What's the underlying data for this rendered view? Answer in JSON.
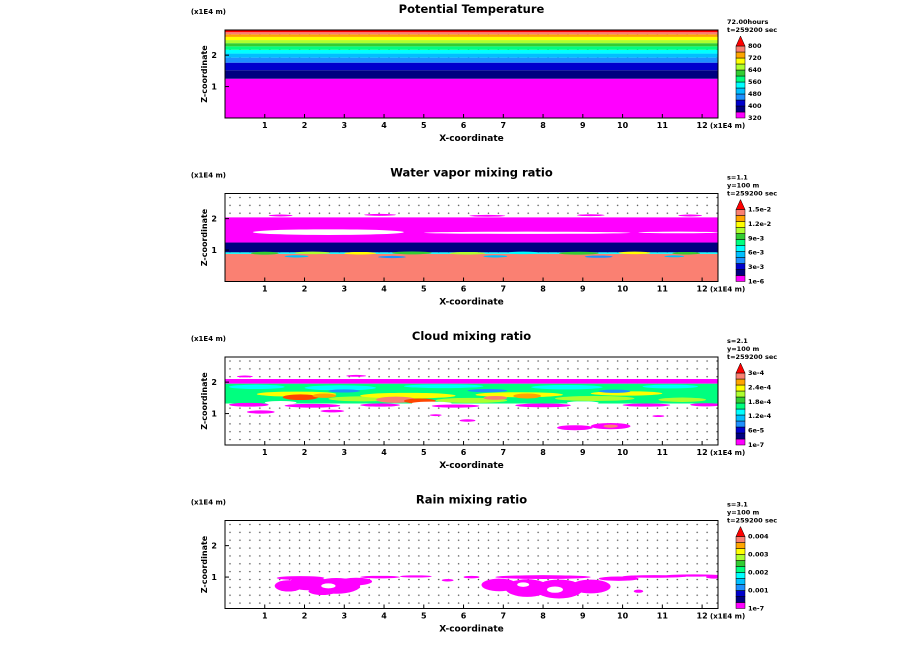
{
  "figure": {
    "background": "#FFFFFF",
    "text_color": "#000000"
  },
  "chart_data": [
    {
      "type": "heatmap",
      "title": "Potential Temperature",
      "xlabel": "X-coordinate",
      "ylabel": "Z-coordinate",
      "x_unit": "(x1E4 m)",
      "z_unit": "(x1E4 m)",
      "xlim": [
        0,
        12.4
      ],
      "zlim": [
        0,
        2.8
      ],
      "xticks": [
        1,
        2,
        3,
        4,
        5,
        6,
        7,
        8,
        9,
        10,
        11,
        12
      ],
      "zticks": [
        1,
        2
      ],
      "annotations": [
        "72.00hours",
        "t=259200 sec"
      ],
      "colorbar": {
        "labels": [
          "320",
          "400",
          "480",
          "560",
          "640",
          "720",
          "800"
        ],
        "colors": [
          "#FF00FF",
          "#000080",
          "#0000CD",
          "#1E90FF",
          "#00BFFF",
          "#00FFFF",
          "#00FF7F",
          "#32CD32",
          "#ADFF2F",
          "#FFFF00",
          "#FFA500",
          "#FA8072"
        ],
        "pennant": "#FF0000"
      },
      "layers": [
        [
          0.0,
          1.25,
          "#FF00FF"
        ],
        [
          1.25,
          1.52,
          "#000080"
        ],
        [
          1.52,
          1.76,
          "#0000CD"
        ],
        [
          1.76,
          1.92,
          "#1E90FF"
        ],
        [
          1.92,
          2.05,
          "#00BFFF"
        ],
        [
          2.05,
          2.17,
          "#00FFFF"
        ],
        [
          2.17,
          2.28,
          "#00FF7F"
        ],
        [
          2.28,
          2.38,
          "#32CD32"
        ],
        [
          2.38,
          2.48,
          "#ADFF2F"
        ],
        [
          2.48,
          2.58,
          "#FFFF00"
        ],
        [
          2.58,
          2.66,
          "#FFA500"
        ],
        [
          2.66,
          2.73,
          "#FA8072"
        ],
        [
          2.73,
          2.8,
          "#FF0000"
        ]
      ],
      "blobs": []
    },
    {
      "type": "heatmap",
      "title": "Water vapor mixing ratio",
      "xlabel": "X-coordinate",
      "ylabel": "Z-coordinate",
      "x_unit": "(x1E4 m)",
      "z_unit": "(x1E4 m)",
      "xlim": [
        0,
        12.4
      ],
      "zlim": [
        0,
        2.8
      ],
      "xticks": [
        1,
        2,
        3,
        4,
        5,
        6,
        7,
        8,
        9,
        10,
        11,
        12
      ],
      "zticks": [
        1,
        2
      ],
      "annotations": [
        "s=1.1",
        "y=100 m",
        "t=259200 sec"
      ],
      "colorbar": {
        "labels": [
          "1e-6",
          "3e-3",
          "6e-3",
          "9e-3",
          "1.2e-2",
          "1.5e-2"
        ],
        "colors": [
          "#FF00FF",
          "#000080",
          "#0000CD",
          "#1E90FF",
          "#00BFFF",
          "#00FFFF",
          "#00FF7F",
          "#32CD32",
          "#ADFF2F",
          "#FFFF00",
          "#FFA500",
          "#FA8072"
        ],
        "pennant": "#FF0000"
      },
      "layers": [
        [
          0.0,
          0.88,
          "#FA8072"
        ],
        [
          0.88,
          0.93,
          "#00FFFF"
        ],
        [
          0.93,
          1.24,
          "#000080"
        ],
        [
          1.24,
          2.04,
          "#FF00FF"
        ]
      ],
      "blobs": [
        [
          1.0,
          0.9,
          0.35,
          0.045,
          "#32CD32"
        ],
        [
          2.2,
          0.91,
          0.45,
          0.04,
          "#ADFF2F"
        ],
        [
          3.4,
          0.9,
          0.4,
          0.04,
          "#FFFF00"
        ],
        [
          4.7,
          0.91,
          0.5,
          0.045,
          "#32CD32"
        ],
        [
          6.1,
          0.9,
          0.45,
          0.04,
          "#ADFF2F"
        ],
        [
          7.5,
          0.91,
          0.4,
          0.04,
          "#00FFFF"
        ],
        [
          8.9,
          0.9,
          0.5,
          0.045,
          "#32CD32"
        ],
        [
          10.3,
          0.91,
          0.4,
          0.04,
          "#FFFF00"
        ],
        [
          11.6,
          0.9,
          0.35,
          0.04,
          "#32CD32"
        ],
        [
          1.8,
          0.8,
          0.3,
          0.035,
          "#00BFFF"
        ],
        [
          4.2,
          0.78,
          0.35,
          0.035,
          "#1E90FF"
        ],
        [
          6.8,
          0.8,
          0.3,
          0.035,
          "#00BFFF"
        ],
        [
          9.4,
          0.79,
          0.35,
          0.035,
          "#1E90FF"
        ],
        [
          11.3,
          0.8,
          0.25,
          0.03,
          "#00BFFF"
        ],
        [
          2.6,
          1.57,
          1.9,
          0.09,
          "#FFFFFF"
        ],
        [
          7.6,
          1.55,
          2.6,
          0.035,
          "#FFFFFF"
        ],
        [
          11.4,
          1.56,
          1.0,
          0.025,
          "#FFFFFF"
        ],
        [
          1.4,
          2.1,
          0.3,
          0.03,
          "#FF00FF"
        ],
        [
          3.9,
          2.12,
          0.4,
          0.03,
          "#FF00FF"
        ],
        [
          6.6,
          2.09,
          0.45,
          0.03,
          "#FF00FF"
        ],
        [
          9.2,
          2.11,
          0.35,
          0.03,
          "#FF00FF"
        ],
        [
          11.7,
          2.1,
          0.3,
          0.03,
          "#FF00FF"
        ]
      ]
    },
    {
      "type": "heatmap",
      "title": "Cloud mixing ratio",
      "xlabel": "X-coordinate",
      "ylabel": "Z-coordinate",
      "x_unit": "(x1E4 m)",
      "z_unit": "(x1E4 m)",
      "xlim": [
        0,
        12.4
      ],
      "zlim": [
        0,
        2.8
      ],
      "xticks": [
        1,
        2,
        3,
        4,
        5,
        6,
        7,
        8,
        9,
        10,
        11,
        12
      ],
      "zticks": [
        1,
        2
      ],
      "annotations": [
        "s=2.1",
        "y=100 m",
        "t=259200 sec"
      ],
      "colorbar": {
        "labels": [
          "1e-7",
          "6e-5",
          "1.2e-4",
          "1.8e-4",
          "2.4e-4",
          "3e-4"
        ],
        "colors": [
          "#FF00FF",
          "#000080",
          "#0000CD",
          "#1E90FF",
          "#00BFFF",
          "#00FFFF",
          "#00FF7F",
          "#32CD32",
          "#ADFF2F",
          "#FFFF00",
          "#FFA500",
          "#FA8072"
        ],
        "pennant": "#FF0000"
      },
      "layers": [
        [
          1.95,
          2.1,
          "#FF00FF"
        ],
        [
          1.32,
          1.95,
          "#00FF7F"
        ]
      ],
      "blobs": [
        [
          0.8,
          1.85,
          0.7,
          0.07,
          "#00FFFF"
        ],
        [
          2.9,
          1.82,
          0.9,
          0.08,
          "#00FFFF"
        ],
        [
          5.5,
          1.87,
          1.0,
          0.06,
          "#00FFFF"
        ],
        [
          8.6,
          1.84,
          0.9,
          0.07,
          "#00FFFF"
        ],
        [
          11.2,
          1.86,
          0.7,
          0.06,
          "#00FFFF"
        ],
        [
          3.5,
          1.47,
          0.9,
          0.08,
          "#ADFF2F"
        ],
        [
          6.2,
          1.42,
          0.9,
          0.08,
          "#ADFF2F"
        ],
        [
          9.3,
          1.48,
          1.0,
          0.08,
          "#ADFF2F"
        ],
        [
          11.5,
          1.44,
          0.6,
          0.07,
          "#ADFF2F"
        ],
        [
          1.8,
          1.62,
          1.0,
          0.08,
          "#FFFF00"
        ],
        [
          4.6,
          1.57,
          1.2,
          0.09,
          "#FFFF00"
        ],
        [
          7.4,
          1.6,
          1.1,
          0.08,
          "#FFFF00"
        ],
        [
          10.1,
          1.64,
          0.9,
          0.07,
          "#FFFF00"
        ],
        [
          1.9,
          1.52,
          0.45,
          0.09,
          "#FF4500"
        ],
        [
          2.5,
          1.57,
          0.3,
          0.07,
          "#FFA500"
        ],
        [
          4.3,
          1.44,
          0.5,
          0.1,
          "#FA8072"
        ],
        [
          4.9,
          1.4,
          0.4,
          0.08,
          "#FF4500"
        ],
        [
          7.6,
          1.56,
          0.35,
          0.08,
          "#FFA500"
        ],
        [
          6.8,
          1.5,
          0.3,
          0.06,
          "#FA8072"
        ],
        [
          3.0,
          1.72,
          0.4,
          0.05,
          "#1E90FF"
        ],
        [
          6.6,
          1.73,
          0.5,
          0.05,
          "#1E90FF"
        ],
        [
          9.8,
          1.71,
          0.4,
          0.05,
          "#1E90FF"
        ],
        [
          1.4,
          1.35,
          0.4,
          0.05,
          "#FFFFFF"
        ],
        [
          5.2,
          1.33,
          0.5,
          0.05,
          "#FFFFFF"
        ],
        [
          9.0,
          1.34,
          0.4,
          0.05,
          "#FFFFFF"
        ],
        [
          0.6,
          1.28,
          0.5,
          0.06,
          "#FF00FF"
        ],
        [
          2.2,
          1.25,
          0.7,
          0.06,
          "#FF00FF"
        ],
        [
          3.9,
          1.27,
          0.5,
          0.05,
          "#FF00FF"
        ],
        [
          5.8,
          1.24,
          0.6,
          0.05,
          "#FF00FF"
        ],
        [
          8.0,
          1.26,
          0.7,
          0.06,
          "#FF00FF"
        ],
        [
          10.6,
          1.27,
          0.6,
          0.05,
          "#FF00FF"
        ],
        [
          12.1,
          1.28,
          0.4,
          0.05,
          "#FF00FF"
        ],
        [
          0.9,
          1.05,
          0.35,
          0.05,
          "#FF00FF"
        ],
        [
          2.7,
          1.08,
          0.3,
          0.04,
          "#FF00FF"
        ],
        [
          5.3,
          0.95,
          0.15,
          0.03,
          "#FF00FF"
        ],
        [
          6.1,
          0.78,
          0.2,
          0.04,
          "#FF00FF"
        ],
        [
          8.8,
          0.55,
          0.45,
          0.08,
          "#FF00FF"
        ],
        [
          9.7,
          0.6,
          0.5,
          0.1,
          "#FF00FF"
        ],
        [
          9.7,
          0.6,
          0.18,
          0.05,
          "#FA8072"
        ],
        [
          10.9,
          0.92,
          0.15,
          0.03,
          "#FF00FF"
        ],
        [
          0.5,
          2.18,
          0.2,
          0.03,
          "#FF00FF"
        ],
        [
          3.3,
          2.2,
          0.25,
          0.03,
          "#FF00FF"
        ]
      ]
    },
    {
      "type": "heatmap",
      "title": "Rain mixing ratio",
      "xlabel": "X-coordinate",
      "ylabel": "Z-coordinate",
      "x_unit": "(x1E4 m)",
      "z_unit": "(x1E4 m)",
      "xlim": [
        0,
        12.4
      ],
      "zlim": [
        0,
        2.8
      ],
      "xticks": [
        1,
        2,
        3,
        4,
        5,
        6,
        7,
        8,
        9,
        10,
        11,
        12
      ],
      "zticks": [
        1,
        2
      ],
      "annotations": [
        "s=3.1",
        "y=100 m",
        "t=259200 sec"
      ],
      "colorbar": {
        "labels": [
          "1e-7",
          "0.001",
          "0.002",
          "0.003",
          "0.004"
        ],
        "colors": [
          "#FF00FF",
          "#000080",
          "#0000CD",
          "#1E90FF",
          "#00BFFF",
          "#00FFFF",
          "#00FF7F",
          "#32CD32",
          "#ADFF2F",
          "#FFFF00",
          "#FFA500",
          "#FA8072"
        ],
        "pennant": "#FF0000"
      },
      "layers": [],
      "blobs": [
        [
          1.6,
          0.72,
          0.35,
          0.18,
          "#FF00FF"
        ],
        [
          2.1,
          0.8,
          0.5,
          0.22,
          "#FF00FF"
        ],
        [
          2.8,
          0.72,
          0.6,
          0.25,
          "#FF00FF"
        ],
        [
          3.3,
          0.86,
          0.4,
          0.12,
          "#FF00FF"
        ],
        [
          2.45,
          0.55,
          0.35,
          0.12,
          "#FF00FF"
        ],
        [
          1.9,
          0.97,
          0.6,
          0.06,
          "#FF00FF"
        ],
        [
          2.6,
          0.72,
          0.18,
          0.08,
          "#FFFFFF"
        ],
        [
          3.9,
          1.0,
          0.5,
          0.04,
          "#FF00FF"
        ],
        [
          4.8,
          1.02,
          0.4,
          0.035,
          "#FF00FF"
        ],
        [
          5.6,
          0.9,
          0.15,
          0.04,
          "#FF00FF"
        ],
        [
          6.2,
          1.0,
          0.2,
          0.04,
          "#FF00FF"
        ],
        [
          6.9,
          0.75,
          0.45,
          0.2,
          "#FF00FF"
        ],
        [
          7.6,
          0.65,
          0.55,
          0.28,
          "#FF00FF"
        ],
        [
          8.4,
          0.62,
          0.6,
          0.3,
          "#FF00FF"
        ],
        [
          9.2,
          0.7,
          0.5,
          0.22,
          "#FF00FF"
        ],
        [
          8.0,
          1.0,
          1.2,
          0.06,
          "#FF00FF"
        ],
        [
          8.3,
          0.6,
          0.2,
          0.1,
          "#FFFFFF"
        ],
        [
          7.5,
          0.76,
          0.15,
          0.07,
          "#FFFFFF"
        ],
        [
          9.9,
          0.95,
          0.5,
          0.07,
          "#FF00FF"
        ],
        [
          10.4,
          0.55,
          0.12,
          0.05,
          "#FF00FF"
        ],
        [
          10.8,
          1.02,
          0.8,
          0.04,
          "#FF00FF"
        ],
        [
          11.8,
          1.05,
          0.7,
          0.035,
          "#FF00FF"
        ],
        [
          12.3,
          1.0,
          0.2,
          0.05,
          "#FF00FF"
        ]
      ]
    }
  ]
}
